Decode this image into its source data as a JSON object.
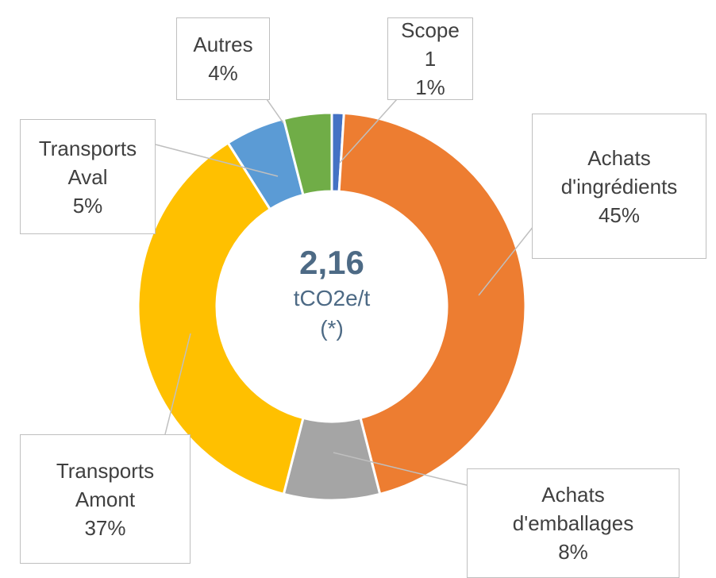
{
  "chart_data": {
    "type": "donut",
    "categories": [
      "Scope 1",
      "Achats d'ingrédients",
      "Achats d'emballages",
      "Transports Amont",
      "Transports Aval",
      "Autres"
    ],
    "values": [
      1,
      45,
      8,
      37,
      5,
      4
    ],
    "value_labels": [
      "1%",
      "45%",
      "8%",
      "37%",
      "5%",
      "4%"
    ],
    "colors": [
      "#4472c4",
      "#ed7d31",
      "#a5a5a5",
      "#ffc000",
      "#5b9bd5",
      "#70ad47"
    ],
    "center_text": [
      "2,16",
      "tCO2e/t",
      "(*)"
    ]
  }
}
